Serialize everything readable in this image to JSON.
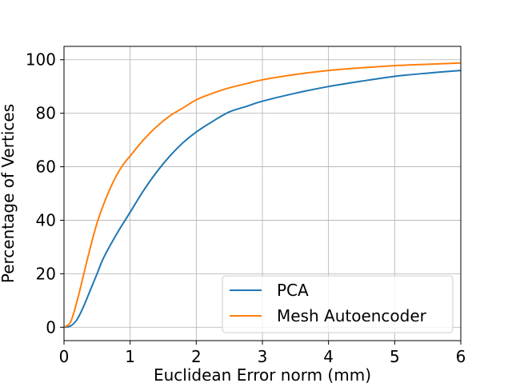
{
  "chart_data": {
    "type": "line",
    "title": "",
    "xlabel": "Euclidean Error norm (mm)",
    "ylabel": "Percentage of Vertices",
    "xlim": [
      0,
      6
    ],
    "ylim": [
      -5,
      105
    ],
    "xticks": [
      0,
      1,
      2,
      3,
      4,
      5,
      6
    ],
    "yticks": [
      0,
      20,
      40,
      60,
      80,
      100
    ],
    "grid": true,
    "legend_position": "lower-right",
    "series": [
      {
        "name": "PCA",
        "color": "#1f77b4",
        "x": [
          0,
          0.1,
          0.2,
          0.3,
          0.4,
          0.5,
          0.6,
          0.8,
          1.0,
          1.2,
          1.4,
          1.6,
          1.8,
          2.0,
          2.25,
          2.5,
          2.75,
          3.0,
          3.5,
          4.0,
          4.5,
          5.0,
          5.5,
          6.0
        ],
        "values": [
          0,
          0.5,
          3,
          8,
          14,
          20,
          26,
          35,
          43,
          51,
          58,
          64,
          69,
          73,
          77,
          80.5,
          82.5,
          84.5,
          87.5,
          90,
          92,
          93.8,
          95,
          96
        ]
      },
      {
        "name": "Mesh Autoencoder",
        "color": "#ff7f0e",
        "x": [
          0,
          0.1,
          0.2,
          0.3,
          0.4,
          0.5,
          0.6,
          0.7,
          0.8,
          0.9,
          1.0,
          1.2,
          1.4,
          1.6,
          1.8,
          2.0,
          2.25,
          2.5,
          2.75,
          3.0,
          3.5,
          4.0,
          4.5,
          5.0,
          5.5,
          6.0
        ],
        "values": [
          0,
          2,
          10,
          20,
          30,
          39,
          46,
          52,
          57,
          61,
          64,
          70,
          75,
          79,
          82,
          85,
          87.5,
          89.5,
          91,
          92.5,
          94.5,
          96,
          97,
          97.8,
          98.3,
          98.8
        ]
      }
    ]
  }
}
